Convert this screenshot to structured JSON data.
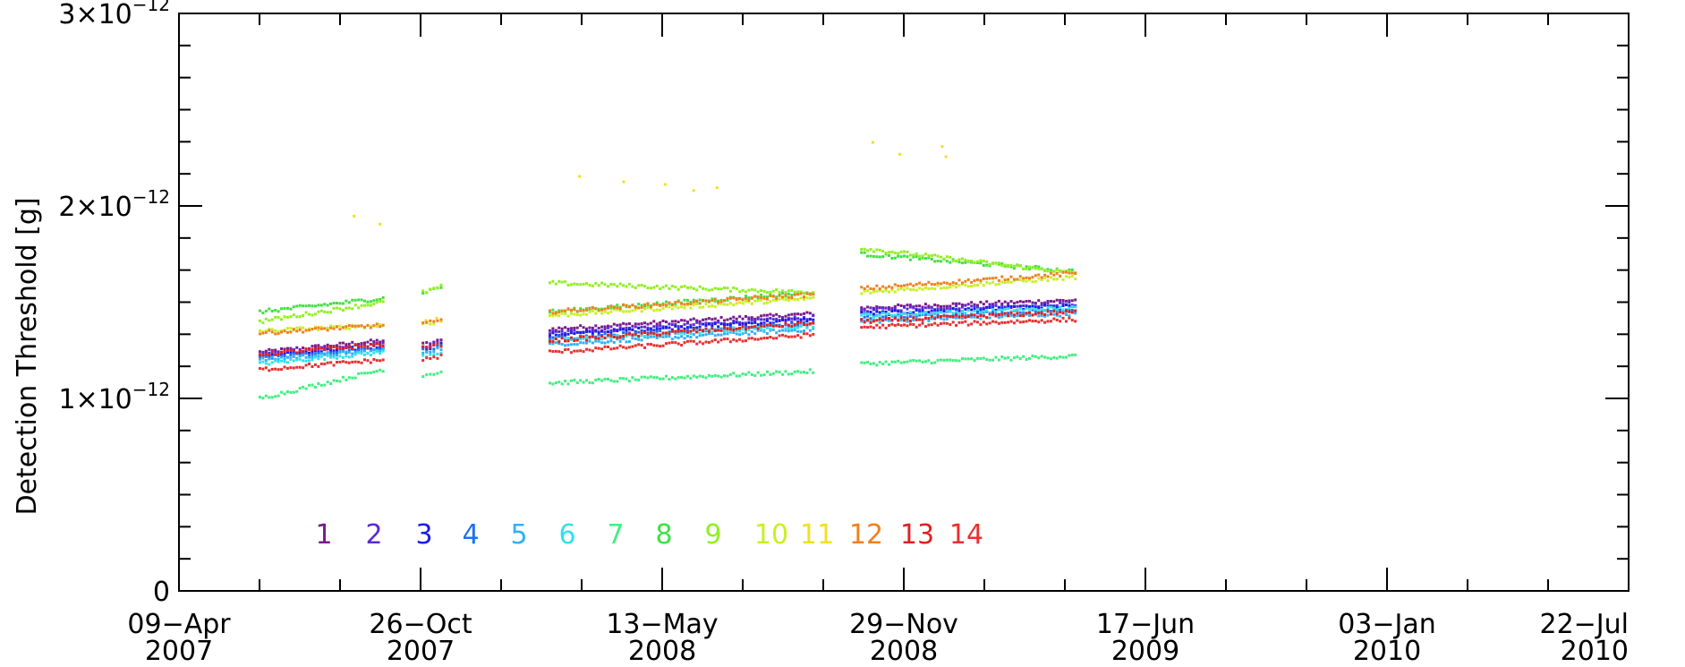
{
  "chart_data": {
    "type": "scatter",
    "title": "",
    "xlabel": "",
    "ylabel": "Detection Threshold [g]",
    "x_axis": {
      "kind": "date",
      "range": [
        "2007-04-09",
        "2010-07-22"
      ],
      "major_ticks": [
        {
          "date": "2007-04-09",
          "label_line1": "09−Apr",
          "label_line2": "2007"
        },
        {
          "date": "2007-10-26",
          "label_line1": "26−Oct",
          "label_line2": "2007"
        },
        {
          "date": "2008-05-13",
          "label_line1": "13−May",
          "label_line2": "2008"
        },
        {
          "date": "2008-11-29",
          "label_line1": "29−Nov",
          "label_line2": "2008"
        },
        {
          "date": "2009-06-17",
          "label_line1": "17−Jun",
          "label_line2": "2009"
        },
        {
          "date": "2010-01-03",
          "label_line1": "03−Jan",
          "label_line2": "2010"
        },
        {
          "date": "2010-07-22",
          "label_line1": "22−Jul",
          "label_line2": "2010"
        }
      ],
      "minor_per_major": 2
    },
    "y_axis": {
      "range": [
        0,
        3e-12
      ],
      "major_ticks": [
        {
          "value": 0,
          "label_mantissa": "0",
          "label_exp": ""
        },
        {
          "value": 1e-12,
          "label_mantissa": "1×10",
          "label_exp": "−12"
        },
        {
          "value": 2e-12,
          "label_mantissa": "2×10",
          "label_exp": "−12"
        },
        {
          "value": 3e-12,
          "label_mantissa": "3×10",
          "label_exp": "−12"
        }
      ],
      "minor_per_major": 5
    },
    "grid": false,
    "legend_placement": "bottom-left",
    "segments": [
      {
        "start": "2007-06-15",
        "end": "2007-09-25"
      },
      {
        "start": "2007-10-28",
        "end": "2007-11-12"
      },
      {
        "start": "2008-02-10",
        "end": "2008-09-15"
      },
      {
        "start": "2008-10-25",
        "end": "2009-04-20"
      }
    ],
    "series": [
      {
        "name": "1",
        "color": "#7a1a8c",
        "levels": [
          [
            1.24e-12,
            1.3e-12
          ],
          [
            1.28e-12,
            1.3e-12
          ],
          [
            1.36e-12,
            1.44e-12
          ],
          [
            1.47e-12,
            1.51e-12
          ]
        ]
      },
      {
        "name": "2",
        "color": "#5a2ad6",
        "levels": [
          [
            1.23e-12,
            1.28e-12
          ],
          [
            1.27e-12,
            1.29e-12
          ],
          [
            1.34e-12,
            1.42e-12
          ],
          [
            1.46e-12,
            1.49e-12
          ]
        ]
      },
      {
        "name": "3",
        "color": "#1c1ce6",
        "levels": [
          [
            1.22e-12,
            1.27e-12
          ],
          [
            1.26e-12,
            1.28e-12
          ],
          [
            1.33e-12,
            1.41e-12
          ],
          [
            1.44e-12,
            1.48e-12
          ]
        ]
      },
      {
        "name": "4",
        "color": "#2070f0",
        "levels": [
          [
            1.21e-12,
            1.26e-12
          ],
          [
            1.25e-12,
            1.27e-12
          ],
          [
            1.31e-12,
            1.39e-12
          ],
          [
            1.42e-12,
            1.46e-12
          ]
        ]
      },
      {
        "name": "5",
        "color": "#30b0f8",
        "levels": [
          [
            1.2e-12,
            1.25e-12
          ],
          [
            1.24e-12,
            1.26e-12
          ],
          [
            1.28e-12,
            1.36e-12
          ],
          [
            1.4e-12,
            1.44e-12
          ]
        ]
      },
      {
        "name": "6",
        "color": "#30e0e8",
        "levels": [
          [
            1.18e-12,
            1.24e-12
          ],
          [
            1.22e-12,
            1.24e-12
          ],
          [
            1.3e-12,
            1.38e-12
          ],
          [
            1.43e-12,
            1.47e-12
          ]
        ]
      },
      {
        "name": "7",
        "color": "#40f080",
        "levels": [
          [
            1e-12,
            1.15e-12
          ],
          [
            1.12e-12,
            1.14e-12
          ],
          [
            1.08e-12,
            1.14e-12
          ],
          [
            1.18e-12,
            1.22e-12
          ]
        ]
      },
      {
        "name": "8",
        "color": "#40e040",
        "levels": [
          [
            1.45e-12,
            1.52e-12
          ],
          [
            1.55e-12,
            1.58e-12
          ],
          [
            1.45e-12,
            1.55e-12
          ],
          [
            1.75e-12,
            1.66e-12
          ]
        ]
      },
      {
        "name": "9",
        "color": "#90f020",
        "levels": [
          [
            1.4e-12,
            1.5e-12
          ],
          [
            1.55e-12,
            1.58e-12
          ],
          [
            1.6e-12,
            1.55e-12
          ],
          [
            1.78e-12,
            1.65e-12
          ]
        ]
      },
      {
        "name": "10",
        "color": "#c8f020",
        "levels": [
          [
            1.35e-12,
            1.38e-12
          ],
          [
            1.39e-12,
            1.4e-12
          ],
          [
            1.43e-12,
            1.52e-12
          ],
          [
            1.55e-12,
            1.63e-12
          ]
        ]
      },
      {
        "name": "11",
        "color": "#f0e020",
        "levels": [
          [
            1.9e-12,
            1.94e-12
          ],
          [
            1.4e-12,
            1.41e-12
          ],
          [
            2.07e-12,
            2.15e-12
          ],
          [
            2.25e-12,
            2.33e-12
          ]
        ]
      },
      {
        "name": "12",
        "color": "#f08020",
        "levels": [
          [
            1.34e-12,
            1.38e-12
          ],
          [
            1.39e-12,
            1.4e-12
          ],
          [
            1.45e-12,
            1.54e-12
          ],
          [
            1.57e-12,
            1.65e-12
          ]
        ]
      },
      {
        "name": "13",
        "color": "#e02020",
        "levels": [
          [
            1.23e-12,
            1.28e-12
          ],
          [
            1.26e-12,
            1.28e-12
          ],
          [
            1.3e-12,
            1.39e-12
          ],
          [
            1.4e-12,
            1.45e-12
          ]
        ]
      },
      {
        "name": "14",
        "color": "#e83030",
        "levels": [
          [
            1.15e-12,
            1.2e-12
          ],
          [
            1.2e-12,
            1.22e-12
          ],
          [
            1.24e-12,
            1.33e-12
          ],
          [
            1.37e-12,
            1.41e-12
          ]
        ]
      }
    ]
  }
}
